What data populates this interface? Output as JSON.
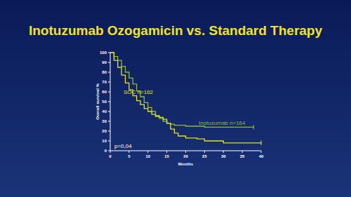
{
  "chart_data": {
    "type": "line",
    "title": "Inotuzumab Ozogamicin vs. Standard Therapy",
    "x_label": "Months",
    "y_label": "Overall survival %",
    "annotation": "p=0,04",
    "line_style": "step",
    "x": [
      0,
      1,
      2,
      3,
      4,
      5,
      6,
      7,
      8,
      9,
      10,
      11,
      12,
      13,
      14,
      15,
      16,
      17,
      18,
      20,
      23,
      25,
      30,
      35,
      38,
      40
    ],
    "series": [
      {
        "name": "Inotuzumab n=164",
        "color": "#8fb83c",
        "values": [
          100,
          96,
          92,
          86,
          80,
          74,
          68,
          61,
          55,
          49,
          44,
          40,
          36,
          33,
          30,
          28,
          27,
          26,
          26,
          25,
          25,
          24,
          24,
          24,
          24,
          null
        ]
      },
      {
        "name": "SOC n=162",
        "color": "#e6e21c",
        "values": [
          100,
          92,
          85,
          77,
          69,
          62,
          56,
          51,
          47,
          43,
          40,
          37,
          35,
          34,
          32,
          28,
          22,
          18,
          15,
          13,
          12,
          10,
          8,
          8,
          8,
          8
        ]
      }
    ],
    "xlim": [
      0,
      40
    ],
    "ylim": [
      0,
      100
    ],
    "xticks": [
      0,
      5,
      10,
      15,
      20,
      25,
      30,
      35,
      40
    ],
    "yticks": [
      0,
      10,
      20,
      30,
      40,
      50,
      60,
      70,
      80,
      90,
      100
    ],
    "grid": false
  }
}
